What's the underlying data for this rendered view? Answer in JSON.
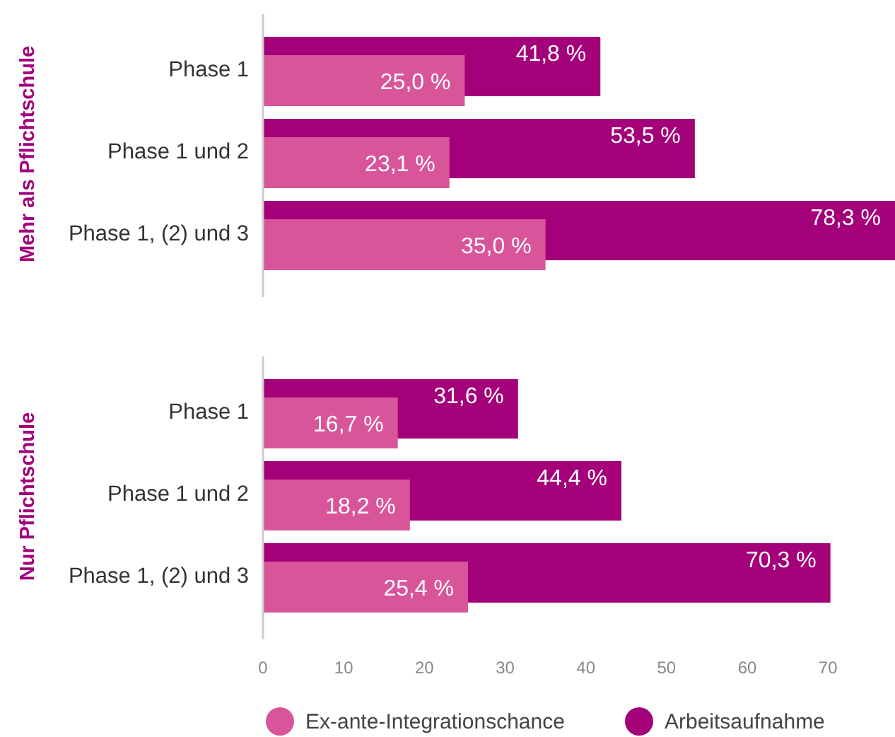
{
  "chart_data": [
    {
      "type": "bar",
      "orientation": "horizontal",
      "ylabel": "Mehr als Pflichtschule",
      "categories": [
        "Phase 1",
        "Phase 1 und 2",
        "Phase 1, (2) und 3"
      ],
      "xlim": [
        0,
        78.3
      ],
      "tick_labels": "y",
      "grid": false,
      "series": [
        {
          "color": "#d9559a",
          "values": [
            25.0,
            23.1,
            35.0
          ],
          "value_labels": [
            "25,0 %",
            "23,1 %",
            "35,0 %"
          ]
        },
        {
          "color": "#a3007a",
          "values": [
            41.8,
            53.5,
            78.3
          ],
          "value_labels": [
            "41,8 %",
            "53,5 %",
            "78,3 %"
          ]
        }
      ]
    },
    {
      "type": "bar",
      "orientation": "horizontal",
      "ylabel": "Nur Pflichtschule",
      "categories": [
        "Phase 1",
        "Phase 1 und 2",
        "Phase 1, (2) und 3"
      ],
      "xlim": [
        0,
        78.3
      ],
      "xticks": [
        0,
        10,
        20,
        30,
        40,
        50,
        60,
        70
      ],
      "grid": false,
      "legend": "bottom",
      "series": [
        {
          "name": "Ex-ante-Integrationschance",
          "color": "#d9559a",
          "values": [
            16.7,
            18.2,
            25.4
          ],
          "value_labels": [
            "16,7 %",
            "18,2 %",
            "25,4 %"
          ]
        },
        {
          "name": "Arbeitsaufnahme",
          "color": "#a3007a",
          "values": [
            31.6,
            44.4,
            70.3
          ],
          "value_labels": [
            "31,6 %",
            "44,4 %",
            "70,3 %"
          ]
        }
      ]
    }
  ]
}
